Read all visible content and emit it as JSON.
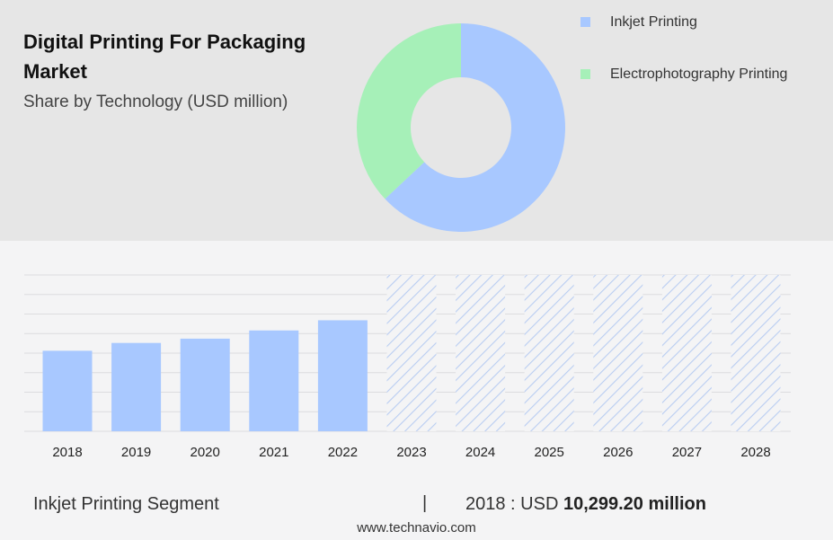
{
  "header": {
    "title": "Digital Printing For Packaging Market",
    "subtitle": "Share by Technology (USD million)"
  },
  "legend": [
    {
      "label": "Inkjet Printing",
      "color": "#a8c8ff"
    },
    {
      "label": "Electrophotography Printing",
      "color": "#a6f0b8"
    }
  ],
  "chart_data": [
    {
      "type": "pie",
      "donut": true,
      "categories": [
        "Inkjet Printing",
        "Electrophotography Printing"
      ],
      "values": [
        63,
        37
      ],
      "colors": [
        "#a8c8ff",
        "#a6f0b8"
      ]
    },
    {
      "type": "bar",
      "categories": [
        "2018",
        "2019",
        "2020",
        "2021",
        "2022",
        "2023",
        "2024",
        "2025",
        "2026",
        "2027",
        "2028"
      ],
      "values": [
        10299.2,
        11300,
        11850,
        12900,
        14200,
        null,
        null,
        null,
        null,
        null,
        null
      ],
      "forecast_categories": [
        "2023",
        "2024",
        "2025",
        "2026",
        "2027",
        "2028"
      ],
      "ylim": [
        0,
        20000
      ],
      "grid": true,
      "bar_color": "#a8c8ff",
      "forecast_style": "hatched"
    }
  ],
  "footer": {
    "segment_label": "Inkjet Printing Segment",
    "separator": "|",
    "value_prefix": "2018 : USD",
    "value_bold": "10,299.20 million",
    "website": "www.technavio.com"
  }
}
